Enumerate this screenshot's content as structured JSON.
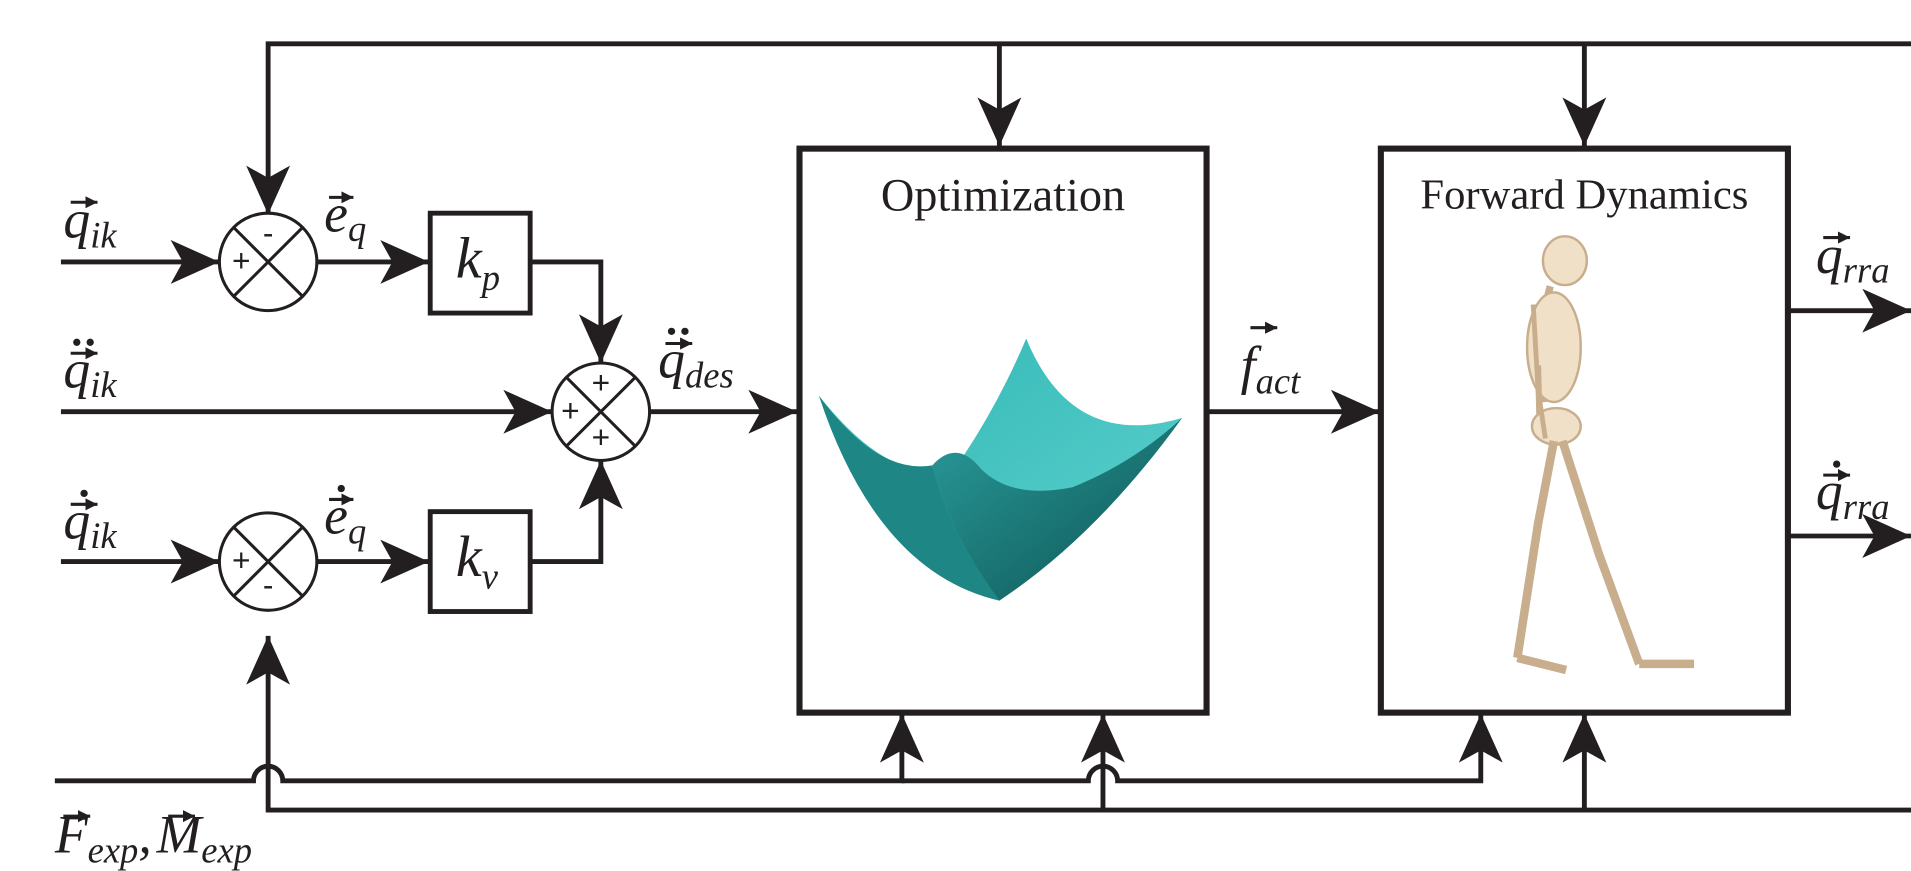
{
  "blocks": {
    "optimization": {
      "title": "Optimization"
    },
    "forward_dynamics": {
      "title": "Forward Dynamics"
    },
    "kp": {
      "symbol": "k",
      "subscript": "p"
    },
    "kv": {
      "symbol": "k",
      "subscript": "v"
    }
  },
  "signals": [
    {
      "symbol": "q",
      "subscript": "ik"
    },
    {
      "symbol": "q",
      "subscript": "ik"
    },
    {
      "symbol": "q",
      "subscript": "ik"
    },
    {
      "symbol": "e",
      "subscript": "q"
    },
    {
      "symbol": "e",
      "subscript": "q"
    },
    {
      "symbol": "q",
      "subscript": "des"
    },
    {
      "symbol": "f",
      "subscript": "act"
    },
    {
      "symbol": "q",
      "subscript": "rra"
    },
    {
      "symbol": "q",
      "subscript": "rra"
    },
    {
      "symbol": "F",
      "subscript": "exp"
    },
    {
      "symbol": "M",
      "subscript": "exp"
    }
  ],
  "separator": ",",
  "junctions": [
    {
      "signs": [
        "-",
        "+"
      ]
    },
    {
      "signs": [
        "+",
        "+",
        "+"
      ]
    },
    {
      "signs": [
        "+",
        "-"
      ]
    }
  ]
}
